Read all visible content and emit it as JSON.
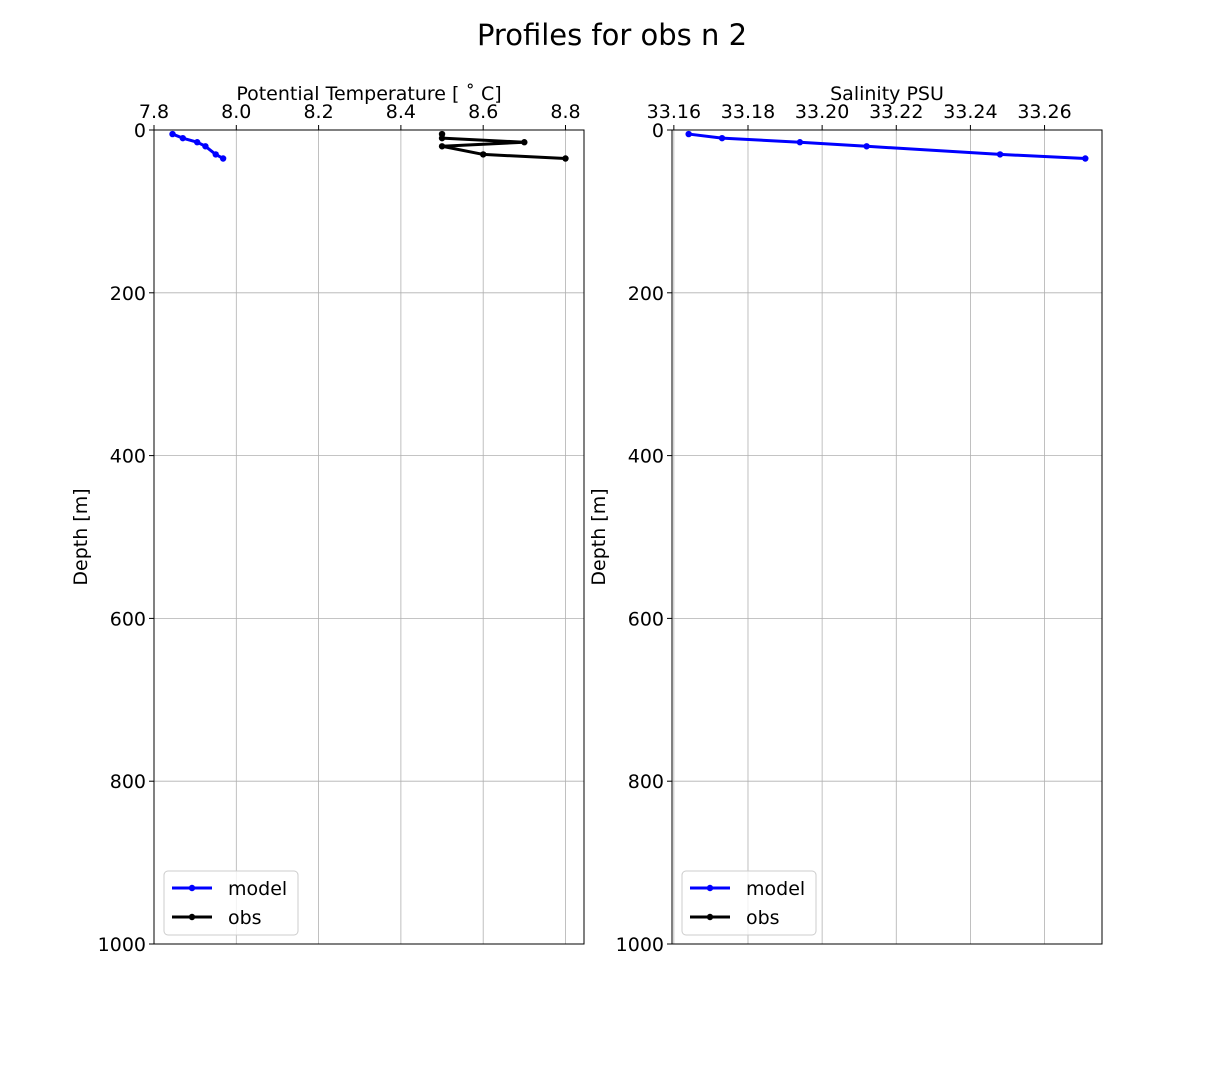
{
  "figure": {
    "title": "Profiles for obs n 2"
  },
  "chart_data": [
    {
      "type": "line",
      "xlabel": "Potential Temperature [$^\\circ$C]",
      "xlabel_display": "Potential Temperature [ ˚ C]",
      "ylabel": "Depth [m]",
      "xlim": [
        7.8,
        8.845
      ],
      "ylim": [
        1000,
        0
      ],
      "xticks": [
        7.8,
        8.0,
        8.2,
        8.4,
        8.6,
        8.8
      ],
      "xtick_labels": [
        "7.8",
        "8.0",
        "8.2",
        "8.4",
        "8.6",
        "8.8"
      ],
      "yticks": [
        0,
        200,
        400,
        600,
        800,
        1000
      ],
      "ytick_labels": [
        "0",
        "200",
        "400",
        "600",
        "800",
        "1000"
      ],
      "xaxis_position": "top",
      "y_inverted": true,
      "grid": true,
      "legend_position": "lower-left",
      "series": [
        {
          "name": "model",
          "color": "#0000ff",
          "points": [
            [
              7.845,
              5
            ],
            [
              7.87,
              10
            ],
            [
              7.905,
              15
            ],
            [
              7.925,
              20
            ],
            [
              7.95,
              30
            ],
            [
              7.968,
              35
            ]
          ]
        },
        {
          "name": "obs",
          "color": "#000000",
          "points": [
            [
              8.5,
              5
            ],
            [
              8.5,
              10
            ],
            [
              8.7,
              15
            ],
            [
              8.5,
              20
            ],
            [
              8.6,
              30
            ],
            [
              8.8,
              35
            ]
          ]
        }
      ]
    },
    {
      "type": "line",
      "xlabel": "Salinity PSU",
      "ylabel": "Depth [m]",
      "xlim": [
        33.1595,
        33.2755
      ],
      "ylim": [
        1000,
        0
      ],
      "xticks": [
        33.16,
        33.18,
        33.2,
        33.22,
        33.24,
        33.26
      ],
      "xtick_labels": [
        "33.16",
        "33.18",
        "33.20",
        "33.22",
        "33.24",
        "33.26"
      ],
      "yticks": [
        0,
        200,
        400,
        600,
        800,
        1000
      ],
      "ytick_labels": [
        "0",
        "200",
        "400",
        "600",
        "800",
        "1000"
      ],
      "xaxis_position": "top",
      "y_inverted": true,
      "grid": true,
      "legend_position": "lower-left",
      "series": [
        {
          "name": "model",
          "color": "#0000ff",
          "points": [
            [
              33.164,
              5
            ],
            [
              33.173,
              10
            ],
            [
              33.194,
              15
            ],
            [
              33.212,
              20
            ],
            [
              33.248,
              30
            ],
            [
              33.271,
              35
            ]
          ]
        },
        {
          "name": "obs",
          "color": "#000000",
          "points": []
        }
      ]
    }
  ]
}
